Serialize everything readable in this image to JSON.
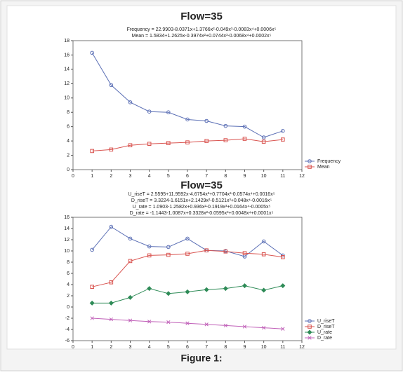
{
  "caption": "Figure 1:",
  "chart_data": [
    {
      "type": "line",
      "title": "Flow=35",
      "annotations": [
        "Frequency = 22.9903-8.0371x+1.3766x²-0.049x³-0.0083x⁴+0.0006x⁵",
        "Mean = 1.5834+1.2625x-0.3974x²+0.0744x³-0.0068x⁴+0.0002x⁵"
      ],
      "x": [
        1,
        2,
        3,
        4,
        5,
        6,
        7,
        8,
        9,
        10,
        11
      ],
      "series": [
        {
          "name": "Frequency",
          "color": "#5b6fb5",
          "values": [
            16.3,
            11.8,
            9.4,
            8.1,
            8.0,
            7.0,
            6.8,
            6.1,
            6.0,
            4.5,
            5.4
          ]
        },
        {
          "name": "Mean",
          "color": "#d9534f",
          "values": [
            2.6,
            2.8,
            3.4,
            3.6,
            3.7,
            3.8,
            4.0,
            4.1,
            4.3,
            3.9,
            4.2
          ]
        }
      ],
      "xlim": [
        0,
        12
      ],
      "xticks": [
        0,
        1,
        2,
        3,
        4,
        5,
        6,
        7,
        8,
        9,
        10,
        11,
        12
      ],
      "ylim": [
        0,
        18
      ],
      "yticks": [
        0,
        2,
        4,
        6,
        8,
        10,
        12,
        14,
        16,
        18
      ],
      "legend": "lower right"
    },
    {
      "type": "line",
      "title": "Flow=35",
      "annotations": [
        "U_riseT = 2.5595+11.9592x-4.6754x²+0.7704x³-0.0574x⁴+0.0016x⁵",
        "D_riseT = 3.3224-1.6151x+2.1429x²-0.5121x³+0.048x⁴-0.0016x⁵",
        "U_rate = 1.0903-1.2582x+0.936x²-0.1919x³+0.0164x⁴-0.0005x⁵",
        "D_rate = -1.1443-1.0087x+0.3328x²-0.0595x³+0.0048x⁴+0.0001x⁵"
      ],
      "x": [
        1,
        2,
        3,
        4,
        5,
        6,
        7,
        8,
        9,
        10,
        11
      ],
      "series": [
        {
          "name": "U_riseT",
          "color": "#5b6fb5",
          "values": [
            10.2,
            14.3,
            12.2,
            10.8,
            10.7,
            12.2,
            10.1,
            10.0,
            9.0,
            11.7,
            9.2
          ]
        },
        {
          "name": "D_riseT",
          "color": "#d9534f",
          "values": [
            3.6,
            4.4,
            8.2,
            9.2,
            9.3,
            9.5,
            10.1,
            9.9,
            9.6,
            9.4,
            8.9
          ]
        },
        {
          "name": "U_rate",
          "color": "#2e8b57",
          "values": [
            0.7,
            0.7,
            1.7,
            3.3,
            2.4,
            2.7,
            3.1,
            3.3,
            3.8,
            3.0,
            3.8
          ]
        },
        {
          "name": "D_rate",
          "color": "#c060b8",
          "values": [
            -2.0,
            -2.2,
            -2.4,
            -2.6,
            -2.7,
            -2.9,
            -3.1,
            -3.3,
            -3.5,
            -3.7,
            -3.9
          ]
        }
      ],
      "xlim": [
        0,
        12
      ],
      "xticks": [
        0,
        1,
        2,
        3,
        4,
        5,
        6,
        7,
        8,
        9,
        10,
        11,
        12
      ],
      "ylim": [
        -6,
        16
      ],
      "yticks": [
        -6,
        -4,
        -2,
        0,
        2,
        4,
        6,
        8,
        10,
        12,
        14,
        16
      ],
      "legend": "lower right"
    }
  ]
}
